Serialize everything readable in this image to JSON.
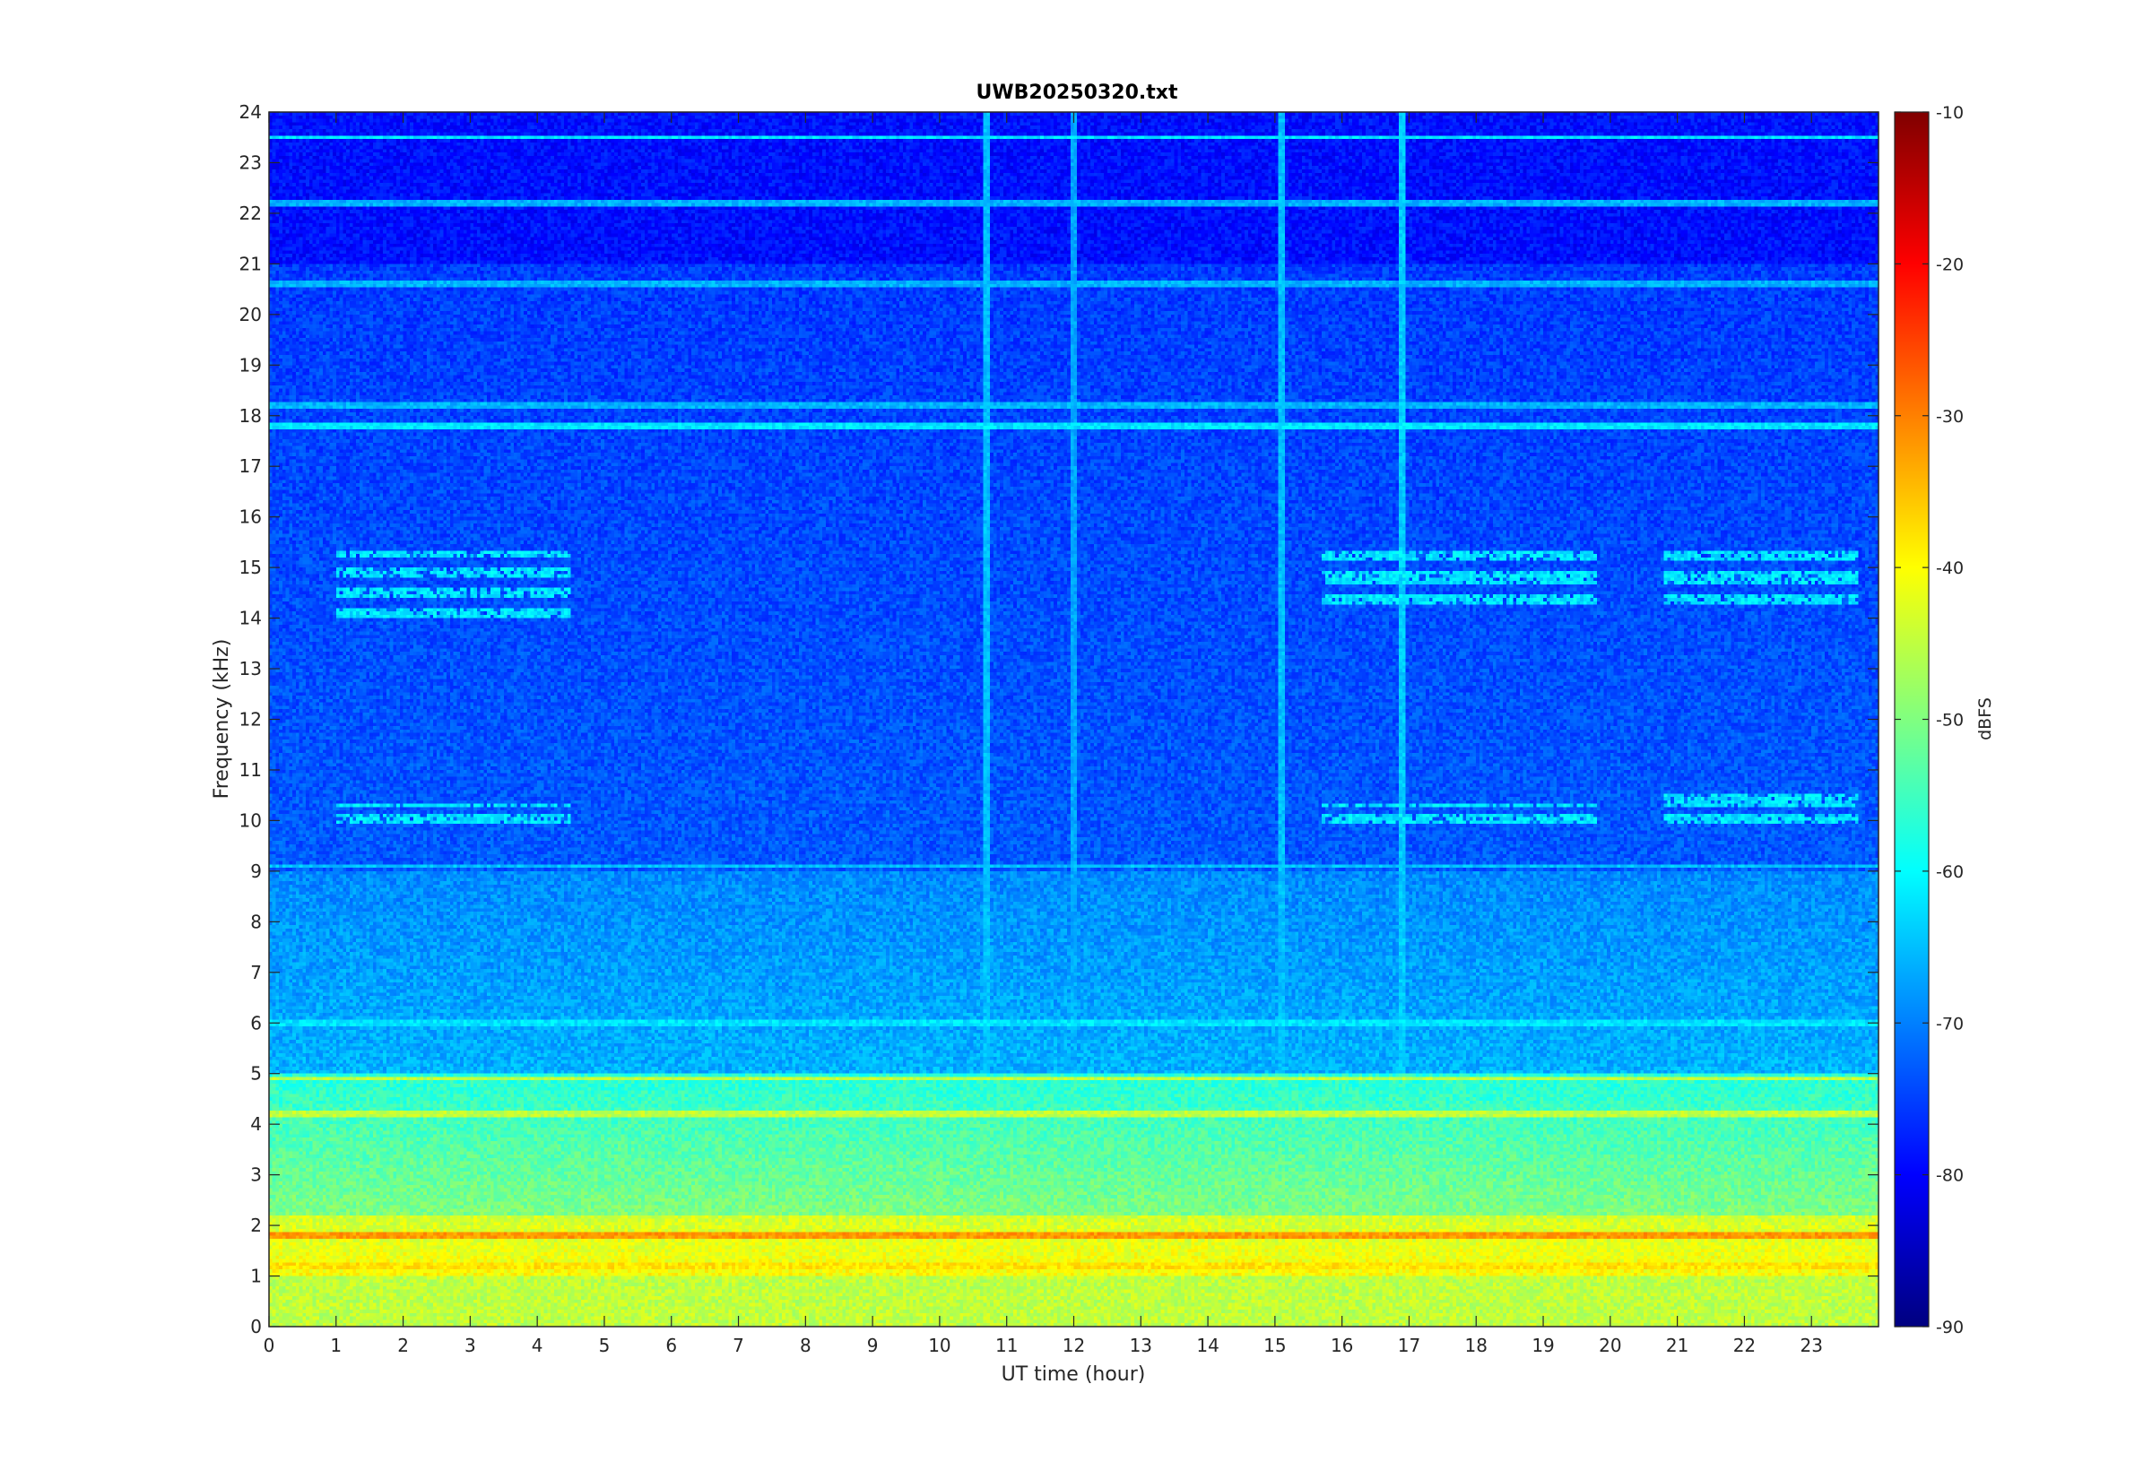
{
  "chart_data": {
    "type": "heatmap",
    "title": "UWB20250320.txt",
    "xlabel": "UT time (hour)",
    "ylabel": "Frequency (kHz)",
    "xlim": [
      0,
      24
    ],
    "ylim": [
      0,
      24
    ],
    "x_ticks": [
      "0",
      "1",
      "2",
      "3",
      "4",
      "5",
      "6",
      "7",
      "8",
      "9",
      "10",
      "11",
      "12",
      "13",
      "14",
      "15",
      "16",
      "17",
      "18",
      "19",
      "20",
      "21",
      "22",
      "23"
    ],
    "y_ticks": [
      "0",
      "1",
      "2",
      "3",
      "4",
      "5",
      "6",
      "7",
      "8",
      "9",
      "10",
      "11",
      "12",
      "13",
      "14",
      "15",
      "16",
      "17",
      "18",
      "19",
      "20",
      "21",
      "22",
      "23",
      "24"
    ],
    "colorbar": {
      "label": "dBFS",
      "colormap": "jet",
      "range": [
        -90,
        -10
      ],
      "ticks": [
        "-10",
        "-20",
        "-30",
        "-40",
        "-50",
        "-60",
        "-70",
        "-80",
        "-90"
      ]
    },
    "background_level_dbfs": {
      "0-1 kHz": -45,
      "1-2 kHz": -40,
      "2-5 kHz": -55,
      "5-9 kHz": -68,
      "9-21 kHz": -75,
      "21-24 kHz": -80
    },
    "features": [
      {
        "kind": "tone",
        "freq_khz": 1.8,
        "level_dbfs": -32
      },
      {
        "kind": "tone",
        "freq_khz": 1.2,
        "level_dbfs": -38
      },
      {
        "kind": "tone",
        "freq_khz": 4.2,
        "level_dbfs": -45
      },
      {
        "kind": "tone",
        "freq_khz": 4.9,
        "level_dbfs": -45
      },
      {
        "kind": "tone",
        "freq_khz": 6.0,
        "level_dbfs": -62
      },
      {
        "kind": "tone",
        "freq_khz": 9.1,
        "level_dbfs": -65
      },
      {
        "kind": "tone",
        "freq_khz": 17.8,
        "level_dbfs": -62
      },
      {
        "kind": "tone",
        "freq_khz": 18.2,
        "level_dbfs": -66
      },
      {
        "kind": "tone",
        "freq_khz": 20.6,
        "level_dbfs": -66
      },
      {
        "kind": "tone",
        "freq_khz": 22.2,
        "level_dbfs": -66
      },
      {
        "kind": "tone",
        "freq_khz": 23.5,
        "level_dbfs": -62
      },
      {
        "kind": "burst_group",
        "time_h": [
          1,
          4.5
        ],
        "freq_khz": [
          14,
          15.3
        ],
        "level_dbfs": -62
      },
      {
        "kind": "burst_group",
        "time_h": [
          1,
          4.5
        ],
        "freq_khz": [
          9.9,
          10.3
        ],
        "level_dbfs": -62
      },
      {
        "kind": "burst_group",
        "time_h": [
          15.7,
          19.8
        ],
        "freq_khz": [
          14.3,
          15.3
        ],
        "level_dbfs": -62
      },
      {
        "kind": "burst_group",
        "time_h": [
          15.7,
          19.8
        ],
        "freq_khz": [
          9.9,
          10.3
        ],
        "level_dbfs": -62
      },
      {
        "kind": "burst_group",
        "time_h": [
          20.8,
          23.7
        ],
        "freq_khz": [
          14.3,
          15.4
        ],
        "level_dbfs": -62
      },
      {
        "kind": "burst_group",
        "time_h": [
          20.8,
          23.7
        ],
        "freq_khz": [
          9.9,
          10.5
        ],
        "level_dbfs": -62
      },
      {
        "kind": "impulse",
        "time_h": 10.7,
        "level_dbfs": -65
      },
      {
        "kind": "impulse",
        "time_h": 15.1,
        "level_dbfs": -65
      },
      {
        "kind": "impulse",
        "time_h": 16.9,
        "level_dbfs": -64
      },
      {
        "kind": "impulse",
        "time_h": 12.0,
        "level_dbfs": -67
      }
    ]
  }
}
